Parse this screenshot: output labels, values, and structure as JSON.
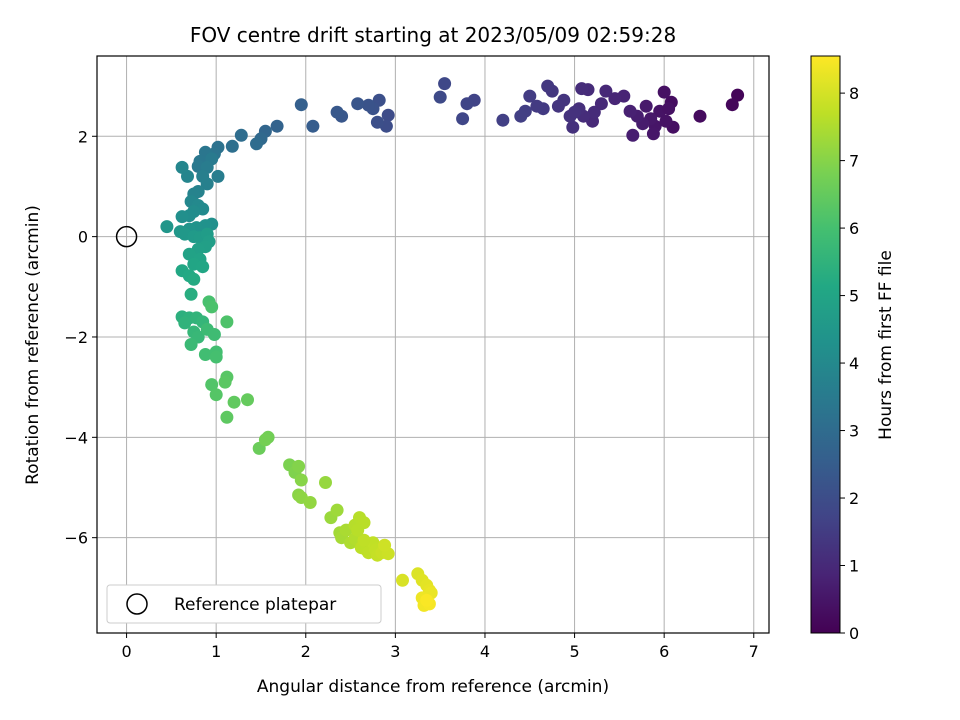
{
  "chart_data": {
    "type": "scatter",
    "title": "FOV centre drift starting at 2023/05/09 02:59:28",
    "xlabel": "Angular distance from reference (arcmin)",
    "ylabel": "Rotation from reference (arcmin)",
    "xlim": [
      -0.33,
      7.17
    ],
    "ylim": [
      -7.9,
      3.6
    ],
    "xticks": [
      0,
      1,
      2,
      3,
      4,
      5,
      6,
      7
    ],
    "yticks": [
      -6,
      -4,
      -2,
      0,
      2
    ],
    "grid": true,
    "colormap": "viridis",
    "colorbar": {
      "label": "Hours from first FF file",
      "range": [
        0,
        8.55
      ],
      "ticks": [
        0,
        1,
        2,
        3,
        4,
        5,
        6,
        7,
        8
      ]
    },
    "legend": {
      "placement": "lower-left",
      "entries": [
        {
          "label": "Reference platepar",
          "marker": "open-circle"
        }
      ]
    },
    "reference_point": {
      "x": 0,
      "y": 0
    },
    "series": [
      {
        "columns": [
          "x",
          "y",
          "hours"
        ],
        "points": [
          [
            6.82,
            2.82,
            0.1
          ],
          [
            6.76,
            2.63,
            0.15
          ],
          [
            6.4,
            2.4,
            0.25
          ],
          [
            6.08,
            2.68,
            0.3
          ],
          [
            6.1,
            2.18,
            0.35
          ],
          [
            6.0,
            2.88,
            0.4
          ],
          [
            5.95,
            2.5,
            0.45
          ],
          [
            5.9,
            2.2,
            0.5
          ],
          [
            5.85,
            2.35,
            0.55
          ],
          [
            5.8,
            2.6,
            0.6
          ],
          [
            5.76,
            2.25,
            0.65
          ],
          [
            5.7,
            2.4,
            0.7
          ],
          [
            5.65,
            2.02,
            0.72
          ],
          [
            5.62,
            2.5,
            0.78
          ],
          [
            5.55,
            2.8,
            0.85
          ],
          [
            5.45,
            2.75,
            0.9
          ],
          [
            5.35,
            2.9,
            0.95
          ],
          [
            5.2,
            2.3,
            1.0
          ],
          [
            5.22,
            2.48,
            1.05
          ],
          [
            5.1,
            2.4,
            1.1
          ],
          [
            5.05,
            2.55,
            1.15
          ],
          [
            4.98,
            2.18,
            1.2
          ],
          [
            4.95,
            2.4,
            1.25
          ],
          [
            4.88,
            2.72,
            1.3
          ],
          [
            4.75,
            2.9,
            1.35
          ],
          [
            4.7,
            3.0,
            1.4
          ],
          [
            4.65,
            2.55,
            1.45
          ],
          [
            4.5,
            2.8,
            1.5
          ],
          [
            4.45,
            2.5,
            1.55
          ],
          [
            4.2,
            2.32,
            1.6
          ],
          [
            3.88,
            2.72,
            1.7
          ],
          [
            3.8,
            2.65,
            1.75
          ],
          [
            3.75,
            2.35,
            1.8
          ],
          [
            3.55,
            3.05,
            1.85
          ],
          [
            3.5,
            2.78,
            1.9
          ],
          [
            5.15,
            2.93,
            1.05
          ],
          [
            5.08,
            2.95,
            1.1
          ],
          [
            4.82,
            2.6,
            1.3
          ],
          [
            4.58,
            2.6,
            1.48
          ],
          [
            4.4,
            2.4,
            1.57
          ],
          [
            6.02,
            2.3,
            0.42
          ],
          [
            5.88,
            2.05,
            0.52
          ],
          [
            6.05,
            2.55,
            0.38
          ],
          [
            5.3,
            2.65,
            0.98
          ],
          [
            5.0,
            2.48,
            1.22
          ],
          [
            2.92,
            2.42,
            1.95
          ],
          [
            2.9,
            2.2,
            2.0
          ],
          [
            2.8,
            2.28,
            2.05
          ],
          [
            2.82,
            2.72,
            2.1
          ],
          [
            2.75,
            2.55,
            2.15
          ],
          [
            2.7,
            2.62,
            2.2
          ],
          [
            2.58,
            2.65,
            2.25
          ],
          [
            2.4,
            2.4,
            2.3
          ],
          [
            2.35,
            2.48,
            2.35
          ],
          [
            2.08,
            2.2,
            2.5
          ],
          [
            1.95,
            2.63,
            2.6
          ],
          [
            1.68,
            2.2,
            2.7
          ],
          [
            1.55,
            2.1,
            2.8
          ],
          [
            1.5,
            1.95,
            2.9
          ],
          [
            1.45,
            1.85,
            3.0
          ],
          [
            1.28,
            2.02,
            3.05
          ],
          [
            1.18,
            1.8,
            3.1
          ],
          [
            1.02,
            1.78,
            3.2
          ],
          [
            0.98,
            1.65,
            3.3
          ],
          [
            0.88,
            1.68,
            3.35
          ],
          [
            0.82,
            1.5,
            3.4
          ],
          [
            0.8,
            1.4,
            3.45
          ],
          [
            0.95,
            1.55,
            3.5
          ],
          [
            0.9,
            1.38,
            3.55
          ],
          [
            1.02,
            1.2,
            3.6
          ],
          [
            0.85,
            1.2,
            3.65
          ],
          [
            0.9,
            1.05,
            3.7
          ],
          [
            0.8,
            0.9,
            3.75
          ],
          [
            0.75,
            0.85,
            3.8
          ],
          [
            0.68,
            1.2,
            3.85
          ],
          [
            0.62,
            1.38,
            3.9
          ],
          [
            0.72,
            0.7,
            3.95
          ],
          [
            0.8,
            0.62,
            4.0
          ],
          [
            0.85,
            0.55,
            4.05
          ],
          [
            0.75,
            0.5,
            4.1
          ],
          [
            0.7,
            0.42,
            4.15
          ],
          [
            0.62,
            0.4,
            4.2
          ],
          [
            0.95,
            0.25,
            4.25
          ],
          [
            0.88,
            0.22,
            4.3
          ],
          [
            0.78,
            0.18,
            4.35
          ],
          [
            0.7,
            0.15,
            4.4
          ],
          [
            0.45,
            0.2,
            4.45
          ],
          [
            0.6,
            0.1,
            4.5
          ],
          [
            0.65,
            0.05,
            4.55
          ],
          [
            0.75,
            0.0,
            4.6
          ],
          [
            0.82,
            -0.02,
            4.65
          ],
          [
            0.9,
            0.05,
            4.7
          ],
          [
            0.92,
            -0.1,
            4.75
          ],
          [
            0.88,
            -0.2,
            4.8
          ],
          [
            0.8,
            -0.25,
            4.85
          ],
          [
            0.7,
            -0.35,
            4.9
          ],
          [
            0.82,
            -0.45,
            4.95
          ],
          [
            0.75,
            -0.55,
            5.0
          ],
          [
            0.85,
            -0.6,
            5.05
          ],
          [
            0.62,
            -0.68,
            5.1
          ],
          [
            0.7,
            -0.78,
            5.15
          ],
          [
            0.75,
            -0.85,
            5.2
          ],
          [
            0.72,
            -1.15,
            5.3
          ],
          [
            0.62,
            -1.6,
            5.4
          ],
          [
            0.7,
            -1.62,
            5.45
          ],
          [
            0.65,
            -1.72,
            5.5
          ],
          [
            0.78,
            -1.62,
            5.55
          ],
          [
            0.85,
            -1.7,
            5.6
          ],
          [
            0.75,
            -1.9,
            5.65
          ],
          [
            0.8,
            -2.0,
            5.7
          ],
          [
            0.72,
            -2.15,
            5.75
          ],
          [
            0.9,
            -1.85,
            5.8
          ],
          [
            0.98,
            -1.95,
            5.85
          ],
          [
            0.88,
            -2.35,
            5.9
          ],
          [
            1.0,
            -2.3,
            5.95
          ],
          [
            1.0,
            -2.4,
            6.0
          ],
          [
            0.92,
            -1.3,
            6.05
          ],
          [
            0.95,
            -1.4,
            6.1
          ],
          [
            1.12,
            -1.7,
            6.15
          ],
          [
            0.95,
            -2.95,
            6.2
          ],
          [
            1.0,
            -3.15,
            6.25
          ],
          [
            1.12,
            -2.8,
            6.3
          ],
          [
            1.1,
            -2.9,
            6.35
          ],
          [
            1.12,
            -3.6,
            6.4
          ],
          [
            1.2,
            -3.3,
            6.45
          ],
          [
            1.35,
            -3.25,
            6.5
          ],
          [
            1.48,
            -4.22,
            6.6
          ],
          [
            1.58,
            -4.0,
            6.7
          ],
          [
            1.55,
            -4.05,
            6.75
          ],
          [
            1.82,
            -4.55,
            6.85
          ],
          [
            1.88,
            -4.7,
            6.9
          ],
          [
            1.92,
            -4.58,
            6.95
          ],
          [
            1.95,
            -4.85,
            7.0
          ],
          [
            1.92,
            -5.15,
            7.05
          ],
          [
            1.95,
            -5.2,
            7.1
          ],
          [
            2.05,
            -5.3,
            7.15
          ],
          [
            2.22,
            -4.9,
            7.2
          ],
          [
            2.28,
            -5.6,
            7.25
          ],
          [
            2.35,
            -5.45,
            7.3
          ],
          [
            2.38,
            -5.9,
            7.35
          ],
          [
            2.4,
            -6.0,
            7.4
          ],
          [
            2.45,
            -5.85,
            7.45
          ],
          [
            2.5,
            -6.1,
            7.5
          ],
          [
            2.55,
            -6.02,
            7.55
          ],
          [
            2.55,
            -5.75,
            7.6
          ],
          [
            2.6,
            -5.6,
            7.62
          ],
          [
            2.65,
            -5.7,
            7.65
          ],
          [
            2.62,
            -6.2,
            7.68
          ],
          [
            2.68,
            -6.25,
            7.7
          ],
          [
            2.7,
            -6.3,
            7.72
          ],
          [
            2.75,
            -6.1,
            7.75
          ],
          [
            2.78,
            -6.25,
            7.78
          ],
          [
            2.8,
            -6.35,
            7.8
          ],
          [
            2.85,
            -6.3,
            7.85
          ],
          [
            2.92,
            -6.32,
            7.9
          ],
          [
            2.88,
            -6.15,
            7.92
          ],
          [
            2.65,
            -6.05,
            7.72
          ],
          [
            2.58,
            -5.85,
            7.63
          ],
          [
            3.08,
            -6.85,
            8.05
          ],
          [
            3.25,
            -6.72,
            8.1
          ],
          [
            3.3,
            -6.85,
            8.15
          ],
          [
            3.35,
            -6.95,
            8.2
          ],
          [
            3.38,
            -7.05,
            8.25
          ],
          [
            3.4,
            -7.1,
            8.3
          ],
          [
            3.3,
            -7.2,
            8.35
          ],
          [
            3.32,
            -7.35,
            8.4
          ],
          [
            3.38,
            -7.32,
            8.45
          ],
          [
            3.35,
            -7.25,
            8.5
          ]
        ]
      }
    ]
  }
}
